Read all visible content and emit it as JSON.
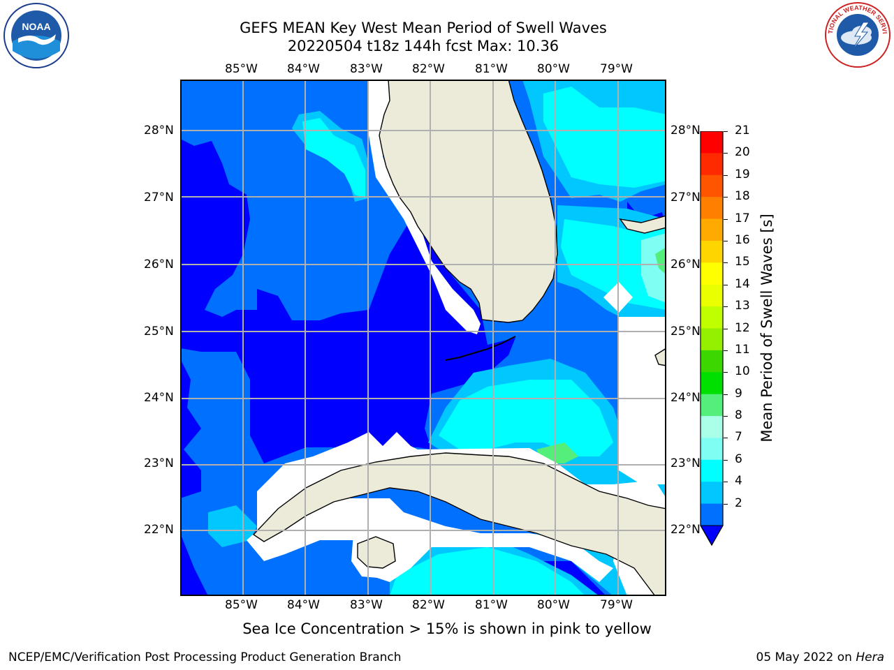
{
  "title_line1": "GEFS MEAN Key West Mean Period of Swell Waves",
  "title_line2": "20220504 t18z 144h fcst   Max: 10.36",
  "logos": {
    "left": {
      "icon": "noaa-logo-icon",
      "text": "NOAA"
    },
    "right": {
      "icon": "nws-logo-icon",
      "text": "NATIONAL WEATHER SERVICE"
    }
  },
  "map": {
    "lon_labels": [
      "85°W",
      "84°W",
      "83°W",
      "82°W",
      "81°W",
      "80°W",
      "79°W"
    ],
    "lat_labels": [
      "28°N",
      "27°N",
      "26°N",
      "25°N",
      "24°N",
      "23°N",
      "22°N"
    ],
    "land_color": "#ecebda",
    "coastline_color": "#000000",
    "grid_color": "#b0b0b0"
  },
  "colorbar": {
    "title": "Mean Period of Swell Waves [s]",
    "ticks": [
      "21",
      "20",
      "19",
      "18",
      "17",
      "16",
      "15",
      "14",
      "13",
      "12",
      "11",
      "10",
      "9",
      "8",
      "7",
      "6",
      "4",
      "2"
    ],
    "colors": [
      "#ff0000",
      "#ff2a00",
      "#ff5500",
      "#ff8000",
      "#ffaa00",
      "#ffd500",
      "#ffff00",
      "#eaff00",
      "#bfff00",
      "#95f000",
      "#3cd700",
      "#00e000",
      "#54ef7a",
      "#aaffe8",
      "#7ffff4",
      "#00ffff",
      "#00c8ff",
      "#0070ff"
    ],
    "under_color": "#0000ff"
  },
  "footer": {
    "note": "Sea Ice Concentration > 15% is shown in pink to yellow",
    "left": "NCEP/EMC/Verification Post Processing Product Generation Branch",
    "right_date": "05 May 2022 on ",
    "right_host": "Hera"
  }
}
